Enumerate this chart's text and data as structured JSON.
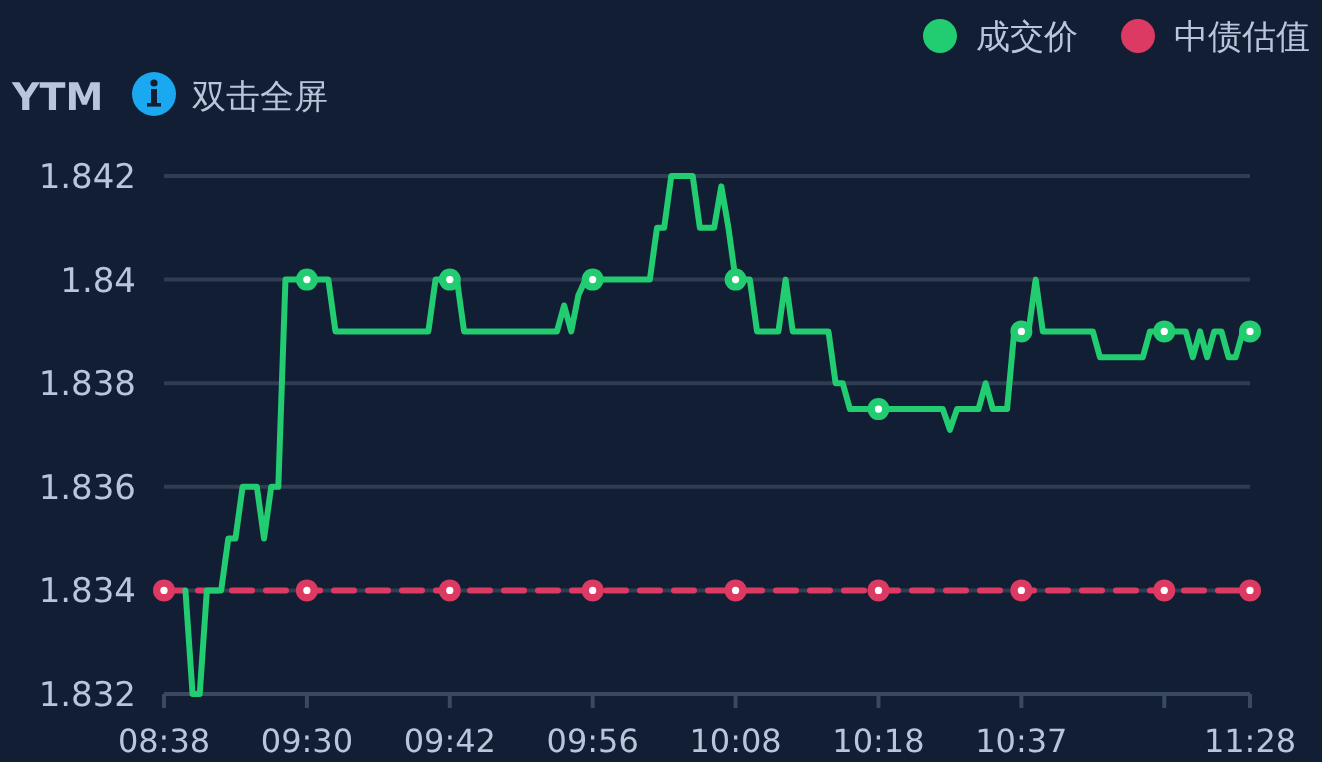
{
  "chart_data": {
    "type": "line",
    "ylabel": "YTM",
    "annotations": [
      "双击全屏"
    ],
    "categories": [
      "08:38",
      null,
      null,
      null,
      null,
      null,
      null,
      null,
      null,
      null,
      null,
      null,
      null,
      null,
      null,
      null,
      null,
      null,
      null,
      null,
      "09:30",
      null,
      null,
      null,
      null,
      null,
      null,
      null,
      null,
      null,
      null,
      null,
      null,
      null,
      null,
      null,
      null,
      null,
      null,
      null,
      "09:42",
      null,
      null,
      null,
      null,
      null,
      null,
      null,
      null,
      null,
      null,
      null,
      null,
      null,
      null,
      null,
      null,
      null,
      null,
      null,
      "09:56",
      null,
      null,
      null,
      null,
      null,
      null,
      null,
      null,
      null,
      null,
      null,
      null,
      null,
      null,
      null,
      null,
      null,
      null,
      null,
      "10:08",
      null,
      null,
      null,
      null,
      null,
      null,
      null,
      null,
      null,
      null,
      null,
      null,
      null,
      null,
      null,
      null,
      null,
      null,
      null,
      "10:18",
      null,
      null,
      null,
      null,
      null,
      null,
      null,
      null,
      null,
      null,
      null,
      null,
      null,
      null,
      null,
      null,
      null,
      null,
      null,
      "10:37",
      null,
      null,
      null,
      null,
      null,
      null,
      null,
      null,
      null,
      null,
      null,
      null,
      null,
      null,
      null,
      null,
      null,
      null,
      null,
      null,
      null,
      null,
      null,
      null,
      null,
      null,
      null,
      null,
      null,
      null,
      null,
      "11:28"
    ],
    "ylim": [
      1.832,
      1.842
    ],
    "yticks": [
      1.832,
      1.834,
      1.836,
      1.838,
      {
        "value": 1.84,
        "label": "1.84"
      },
      1.842
    ],
    "grid": "y",
    "legend": "top right",
    "series": [
      {
        "name": "成交价",
        "color": "#22cc70",
        "line_style": "solid",
        "values": [
          null,
          null,
          null,
          1.834,
          1.832,
          1.832,
          1.834,
          1.834,
          1.834,
          1.835,
          1.835,
          1.836,
          1.836,
          1.836,
          1.835,
          1.836,
          1.836,
          1.84,
          1.84,
          1.84,
          1.84,
          1.84,
          1.84,
          1.84,
          1.839,
          1.839,
          1.839,
          1.839,
          1.839,
          1.839,
          1.839,
          1.839,
          1.839,
          1.839,
          1.839,
          1.839,
          1.839,
          1.839,
          1.84,
          1.84,
          1.84,
          1.84,
          1.839,
          1.839,
          1.839,
          1.839,
          1.839,
          1.839,
          1.839,
          1.839,
          1.839,
          1.839,
          1.839,
          1.839,
          1.839,
          1.839,
          1.8395,
          1.839,
          1.8397,
          1.84,
          1.84,
          1.84,
          1.84,
          1.84,
          1.84,
          1.84,
          1.84,
          1.84,
          1.84,
          1.841,
          1.841,
          1.842,
          1.842,
          1.842,
          1.842,
          1.841,
          1.841,
          1.841,
          1.8418,
          1.841,
          1.84,
          1.84,
          1.84,
          1.839,
          1.839,
          1.839,
          1.839,
          1.84,
          1.839,
          1.839,
          1.839,
          1.839,
          1.839,
          1.839,
          1.838,
          1.838,
          1.8375,
          1.8375,
          1.8375,
          1.8375,
          1.8375,
          1.8375,
          1.8375,
          1.8375,
          1.8375,
          1.8375,
          1.8375,
          1.8375,
          1.8375,
          1.8375,
          1.8371,
          1.8375,
          1.8375,
          1.8375,
          1.8375,
          1.838,
          1.8375,
          1.8375,
          1.8375,
          1.839,
          1.839,
          1.839,
          1.84,
          1.839,
          1.839,
          1.839,
          1.839,
          1.839,
          1.839,
          1.839,
          1.839,
          1.8385,
          1.8385,
          1.8385,
          1.8385,
          1.8385,
          1.8385,
          1.8385,
          1.839,
          1.839,
          1.839,
          1.839,
          1.839,
          1.839,
          1.8385,
          1.839,
          1.8385,
          1.839,
          1.839,
          1.8385,
          1.8385,
          1.839,
          1.839
        ]
      },
      {
        "name": "中债估值",
        "color": "#dc3a62",
        "line_style": "dashed",
        "values": [
          1.834,
          1.834,
          1.834,
          1.834,
          1.834,
          1.834,
          1.834,
          1.834,
          1.834,
          1.834,
          1.834,
          1.834,
          1.834,
          1.834,
          1.834,
          1.834,
          1.834,
          1.834,
          1.834,
          1.834,
          1.834,
          1.834,
          1.834,
          1.834,
          1.834,
          1.834,
          1.834,
          1.834,
          1.834,
          1.834,
          1.834,
          1.834,
          1.834,
          1.834,
          1.834,
          1.834,
          1.834,
          1.834,
          1.834,
          1.834,
          1.834,
          1.834,
          1.834,
          1.834,
          1.834,
          1.834,
          1.834,
          1.834,
          1.834,
          1.834,
          1.834,
          1.834,
          1.834,
          1.834,
          1.834,
          1.834,
          1.834,
          1.834,
          1.834,
          1.834,
          1.834,
          1.834,
          1.834,
          1.834,
          1.834,
          1.834,
          1.834,
          1.834,
          1.834,
          1.834,
          1.834,
          1.834,
          1.834,
          1.834,
          1.834,
          1.834,
          1.834,
          1.834,
          1.834,
          1.834,
          1.834,
          1.834,
          1.834,
          1.834,
          1.834,
          1.834,
          1.834,
          1.834,
          1.834,
          1.834,
          1.834,
          1.834,
          1.834,
          1.834,
          1.834,
          1.834,
          1.834,
          1.834,
          1.834,
          1.834,
          1.834,
          1.834,
          1.834,
          1.834,
          1.834,
          1.834,
          1.834,
          1.834,
          1.834,
          1.834,
          1.834,
          1.834,
          1.834,
          1.834,
          1.834,
          1.834,
          1.834,
          1.834,
          1.834,
          1.834,
          1.834,
          1.834,
          1.834,
          1.834,
          1.834,
          1.834,
          1.834,
          1.834,
          1.834,
          1.834,
          1.834,
          1.834,
          1.834,
          1.834,
          1.834,
          1.834,
          1.834,
          1.834,
          1.834,
          1.834,
          1.834,
          1.834,
          1.834,
          1.834,
          1.834,
          1.834,
          1.834,
          1.834,
          1.834,
          1.834,
          1.834,
          1.834,
          1.834
        ]
      }
    ]
  }
}
